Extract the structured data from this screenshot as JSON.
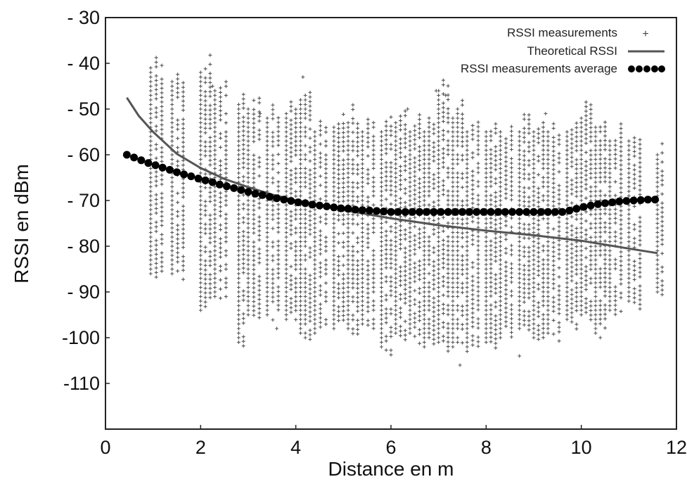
{
  "chart_data": {
    "type": "scatter",
    "title": "",
    "xlabel": "Distance en m",
    "ylabel": "RSSI en dBm",
    "xlim": [
      0,
      12
    ],
    "ylim": [
      -120,
      -30
    ],
    "x_ticks": [
      0,
      2,
      4,
      6,
      8,
      10,
      12
    ],
    "y_ticks": [
      -30,
      -40,
      -50,
      -60,
      -70,
      -80,
      -90,
      -100,
      -110
    ],
    "y_tick_labels": [
      "- 30",
      "- 40",
      "- 50",
      "- 60",
      "- 70",
      "- 80",
      "- 90",
      "-100",
      "-110"
    ],
    "grid": false,
    "legend_position": "top-right",
    "series": [
      {
        "name": "RSSI measurements",
        "kind": "scatter",
        "marker": "plus",
        "color": "#555555",
        "columns": [
          {
            "x": 0.95,
            "y_min": -88,
            "y_max": -41
          },
          {
            "x": 1.4,
            "y_min": -89,
            "y_max": -44
          },
          {
            "x": 2.0,
            "y_min": -95,
            "y_max": -42
          },
          {
            "x": 2.3,
            "y_min": -93,
            "y_max": -46
          },
          {
            "x": 2.8,
            "y_min": -103,
            "y_max": -49
          },
          {
            "x": 3.0,
            "y_min": -96,
            "y_max": -50
          },
          {
            "x": 3.4,
            "y_min": -98,
            "y_max": -52
          },
          {
            "x": 3.8,
            "y_min": -97,
            "y_max": -51
          },
          {
            "x": 4.1,
            "y_min": -101,
            "y_max": -48
          },
          {
            "x": 4.4,
            "y_min": -100,
            "y_max": -55
          },
          {
            "x": 4.8,
            "y_min": -99,
            "y_max": -54
          },
          {
            "x": 5.1,
            "y_min": -101,
            "y_max": -53
          },
          {
            "x": 5.4,
            "y_min": -100,
            "y_max": -55
          },
          {
            "x": 5.8,
            "y_min": -104,
            "y_max": -55
          },
          {
            "x": 6.1,
            "y_min": -102,
            "y_max": -53
          },
          {
            "x": 6.4,
            "y_min": -102,
            "y_max": -55
          },
          {
            "x": 6.7,
            "y_min": -103,
            "y_max": -55
          },
          {
            "x": 7.0,
            "y_min": -104,
            "y_max": -46
          },
          {
            "x": 7.3,
            "y_min": -103,
            "y_max": -52
          },
          {
            "x": 7.6,
            "y_min": -105,
            "y_max": -55
          },
          {
            "x": 8.0,
            "y_min": -103,
            "y_max": -55
          },
          {
            "x": 8.3,
            "y_min": -101,
            "y_max": -55
          },
          {
            "x": 8.7,
            "y_min": -100,
            "y_max": -55
          },
          {
            "x": 9.0,
            "y_min": -101,
            "y_max": -55
          },
          {
            "x": 9.3,
            "y_min": -102,
            "y_max": -55
          },
          {
            "x": 9.7,
            "y_min": -99,
            "y_max": -55
          },
          {
            "x": 10.0,
            "y_min": -98,
            "y_max": -52
          },
          {
            "x": 10.3,
            "y_min": -100,
            "y_max": -54
          },
          {
            "x": 10.6,
            "y_min": -97,
            "y_max": -57
          },
          {
            "x": 11.0,
            "y_min": -95,
            "y_max": -57
          },
          {
            "x": 11.6,
            "y_min": -92,
            "y_max": -60
          }
        ],
        "outliers": [
          {
            "x": 2.25,
            "y": -45
          },
          {
            "x": 4.15,
            "y": -43
          },
          {
            "x": 3.25,
            "y": -51
          },
          {
            "x": 6.35,
            "y": -50
          },
          {
            "x": 6.95,
            "y": -46
          },
          {
            "x": 7.15,
            "y": -47
          },
          {
            "x": 9.25,
            "y": -51
          },
          {
            "x": 8.7,
            "y": -104
          },
          {
            "x": 7.45,
            "y": -106
          },
          {
            "x": 3.6,
            "y": -98
          },
          {
            "x": 10.4,
            "y": -100
          }
        ]
      },
      {
        "name": "Theoretical RSSI",
        "kind": "line",
        "color": "#555555",
        "x": [
          0.45,
          0.7,
          1.0,
          1.5,
          2.0,
          2.5,
          3.0,
          3.5,
          4.0,
          5.0,
          6.0,
          7.0,
          8.0,
          9.0,
          10.0,
          11.0,
          11.6
        ],
        "y": [
          -47.5,
          -51.5,
          -55,
          -59.8,
          -62.9,
          -65.3,
          -67.1,
          -68.7,
          -70,
          -72.1,
          -73.9,
          -75.4,
          -76.6,
          -77.6,
          -78.8,
          -80.5,
          -81.5
        ]
      },
      {
        "name": "RSSI measurements average",
        "kind": "line_markers",
        "marker": "filled-circle",
        "color": "#000000",
        "x": [
          0.45,
          0.6,
          0.75,
          0.9,
          1.05,
          1.2,
          1.35,
          1.5,
          1.65,
          1.8,
          1.95,
          2.1,
          2.25,
          2.4,
          2.55,
          2.7,
          2.85,
          3.0,
          3.15,
          3.3,
          3.45,
          3.6,
          3.75,
          3.9,
          4.05,
          4.2,
          4.35,
          4.5,
          4.65,
          4.8,
          4.95,
          5.1,
          5.25,
          5.4,
          5.55,
          5.7,
          5.85,
          6.0,
          6.15,
          6.3,
          6.45,
          6.6,
          6.75,
          6.9,
          7.05,
          7.2,
          7.35,
          7.5,
          7.65,
          7.8,
          7.95,
          8.1,
          8.25,
          8.4,
          8.55,
          8.7,
          8.85,
          9.0,
          9.15,
          9.3,
          9.45,
          9.6,
          9.75,
          9.9,
          10.05,
          10.2,
          10.35,
          10.5,
          10.65,
          10.8,
          10.95,
          11.1,
          11.25,
          11.4,
          11.55
        ],
        "y": [
          -60.0,
          -60.6,
          -61.2,
          -61.8,
          -62.3,
          -62.8,
          -63.3,
          -63.8,
          -64.3,
          -64.7,
          -65.2,
          -65.6,
          -66.0,
          -66.5,
          -66.9,
          -67.3,
          -67.7,
          -68.1,
          -68.5,
          -68.8,
          -69.2,
          -69.5,
          -69.8,
          -70.1,
          -70.4,
          -70.6,
          -70.9,
          -71.1,
          -71.3,
          -71.5,
          -71.7,
          -71.8,
          -72.0,
          -72.1,
          -72.2,
          -72.3,
          -72.4,
          -72.5,
          -72.5,
          -72.5,
          -72.5,
          -72.5,
          -72.5,
          -72.5,
          -72.5,
          -72.5,
          -72.5,
          -72.5,
          -72.5,
          -72.5,
          -72.5,
          -72.5,
          -72.5,
          -72.5,
          -72.5,
          -72.5,
          -72.5,
          -72.5,
          -72.5,
          -72.5,
          -72.5,
          -72.5,
          -72.2,
          -71.8,
          -71.4,
          -71.1,
          -70.8,
          -70.6,
          -70.4,
          -70.2,
          -70.1,
          -70.0,
          -69.9,
          -69.8,
          -69.8
        ]
      }
    ]
  },
  "legend": {
    "items": [
      {
        "label": "RSSI measurements",
        "marker": "plus"
      },
      {
        "label": "Theoretical RSSI",
        "marker": "line"
      },
      {
        "label": "RSSI measurements average",
        "marker": "dots"
      }
    ]
  }
}
